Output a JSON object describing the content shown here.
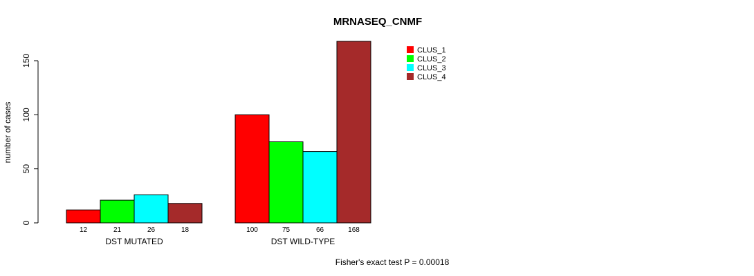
{
  "chart_data": {
    "type": "bar",
    "title": "MRNASEQ_CNMF",
    "ylabel": "number of cases",
    "xlabel": "",
    "ylim": [
      0,
      150
    ],
    "yticks": [
      0,
      50,
      100,
      150
    ],
    "groups": [
      "DST MUTATED",
      "DST WILD-TYPE"
    ],
    "series": [
      {
        "name": "CLUS_1",
        "color": "#ff0000",
        "values": [
          12,
          100
        ]
      },
      {
        "name": "CLUS_2",
        "color": "#00ff00",
        "values": [
          21,
          75
        ]
      },
      {
        "name": "CLUS_3",
        "color": "#00ffff",
        "values": [
          26,
          66
        ]
      },
      {
        "name": "CLUS_4",
        "color": "#a52a2a",
        "values": [
          18,
          168
        ]
      }
    ],
    "legend_position": "top-right",
    "footnote": "Fisher's exact test P = 0.00018"
  }
}
